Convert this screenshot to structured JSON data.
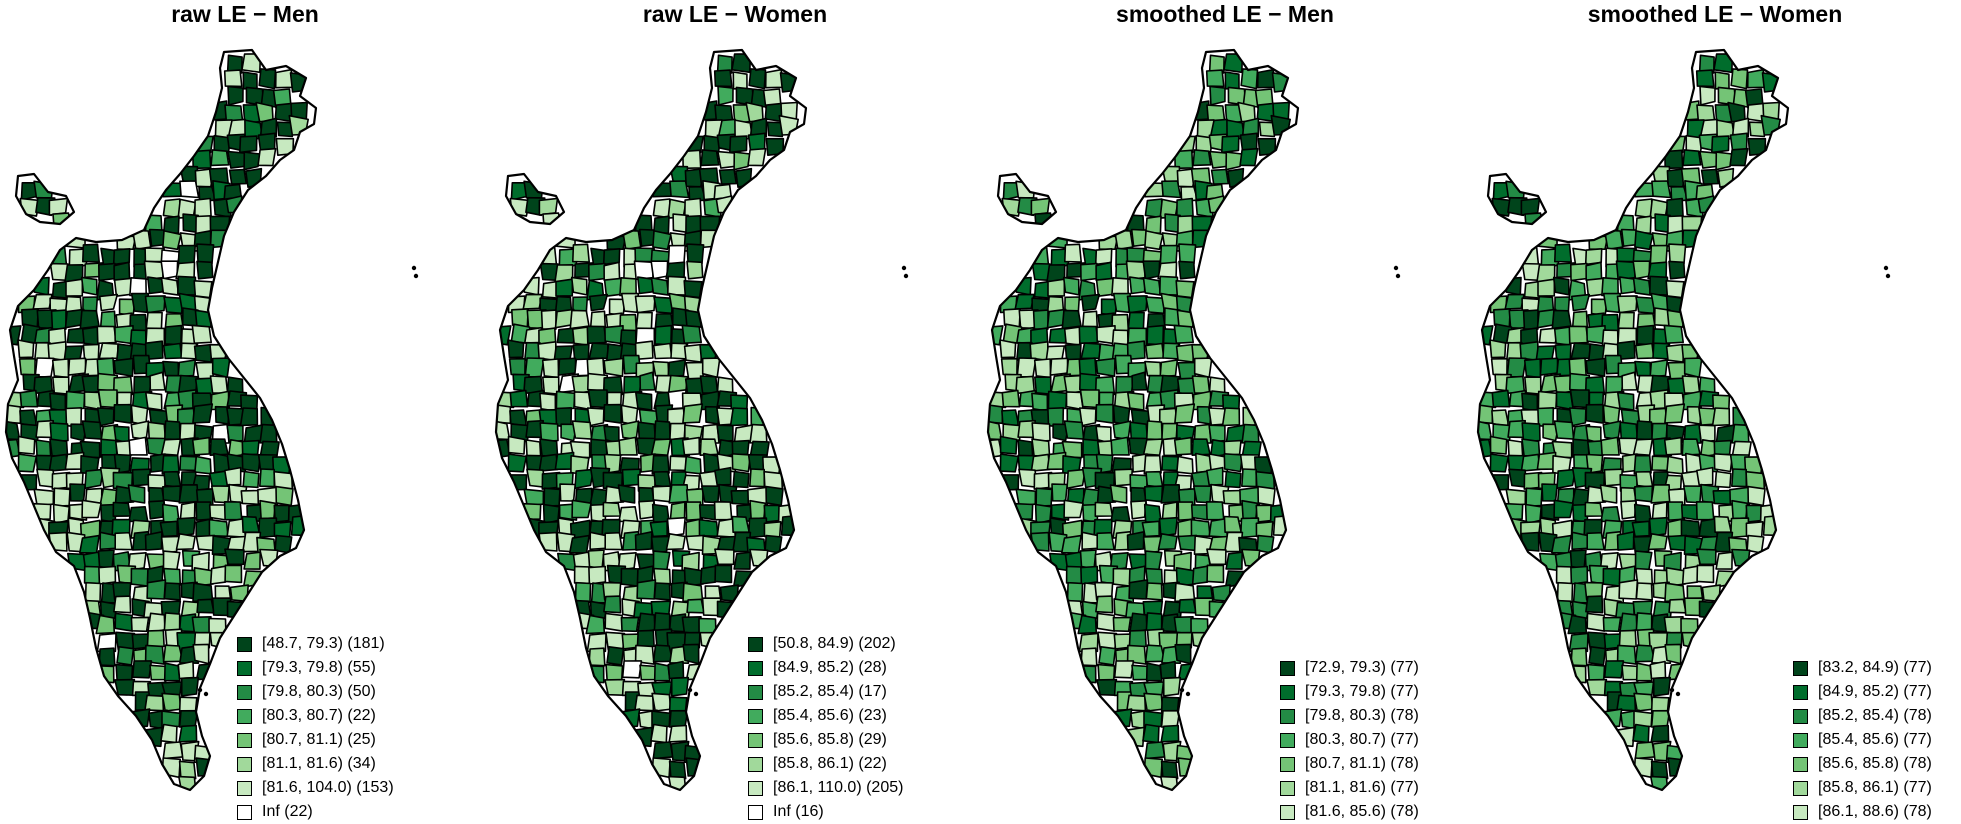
{
  "palette": [
    "#00441b",
    "#006d2c",
    "#238b45",
    "#41ab5d",
    "#74c476",
    "#a1d99b",
    "#c7e9c0"
  ],
  "na_color": "#ffffff",
  "panels": [
    {
      "title": "raw LE − Men",
      "legend": [
        {
          "label": "[48.7, 79.3) (181)",
          "color": "#00441b"
        },
        {
          "label": "[79.3, 79.8) (55)",
          "color": "#006d2c"
        },
        {
          "label": "[79.8, 80.3) (50)",
          "color": "#238b45"
        },
        {
          "label": "[80.3, 80.7) (22)",
          "color": "#41ab5d"
        },
        {
          "label": "[80.7, 81.1) (25)",
          "color": "#74c476"
        },
        {
          "label": "[81.1, 81.6) (34)",
          "color": "#a1d99b"
        },
        {
          "label": "[81.6, 104.0) (153)",
          "color": "#c7e9c0"
        },
        {
          "label": "Inf (22)",
          "color": "#ffffff"
        }
      ]
    },
    {
      "title": "raw LE − Women",
      "legend": [
        {
          "label": "[50.8, 84.9) (202)",
          "color": "#00441b"
        },
        {
          "label": "[84.9, 85.2) (28)",
          "color": "#006d2c"
        },
        {
          "label": "[85.2, 85.4) (17)",
          "color": "#238b45"
        },
        {
          "label": "[85.4, 85.6) (23)",
          "color": "#41ab5d"
        },
        {
          "label": "[85.6, 85.8) (29)",
          "color": "#74c476"
        },
        {
          "label": "[85.8, 86.1) (22)",
          "color": "#a1d99b"
        },
        {
          "label": "[86.1, 110.0) (205)",
          "color": "#c7e9c0"
        },
        {
          "label": "Inf (16)",
          "color": "#ffffff"
        }
      ]
    },
    {
      "title": "smoothed LE − Men",
      "legend": [
        {
          "label": "[72.9, 79.3) (77)",
          "color": "#00441b"
        },
        {
          "label": "[79.3, 79.8) (77)",
          "color": "#006d2c"
        },
        {
          "label": "[79.8, 80.3) (78)",
          "color": "#238b45"
        },
        {
          "label": "[80.3, 80.7) (77)",
          "color": "#41ab5d"
        },
        {
          "label": "[80.7, 81.1) (78)",
          "color": "#74c476"
        },
        {
          "label": "[81.1, 81.6) (77)",
          "color": "#a1d99b"
        },
        {
          "label": "[81.6, 85.6) (78)",
          "color": "#c7e9c0"
        }
      ]
    },
    {
      "title": "smoothed LE − Women",
      "legend": [
        {
          "label": "[83.2, 84.9) (77)",
          "color": "#00441b"
        },
        {
          "label": "[84.9, 85.2) (77)",
          "color": "#006d2c"
        },
        {
          "label": "[85.2, 85.4) (78)",
          "color": "#238b45"
        },
        {
          "label": "[85.4, 85.6) (77)",
          "color": "#41ab5d"
        },
        {
          "label": "[85.6, 85.8) (78)",
          "color": "#74c476"
        },
        {
          "label": "[85.8, 86.1) (77)",
          "color": "#a1d99b"
        },
        {
          "label": "[86.1, 88.6) (78)",
          "color": "#c7e9c0"
        }
      ]
    }
  ]
}
